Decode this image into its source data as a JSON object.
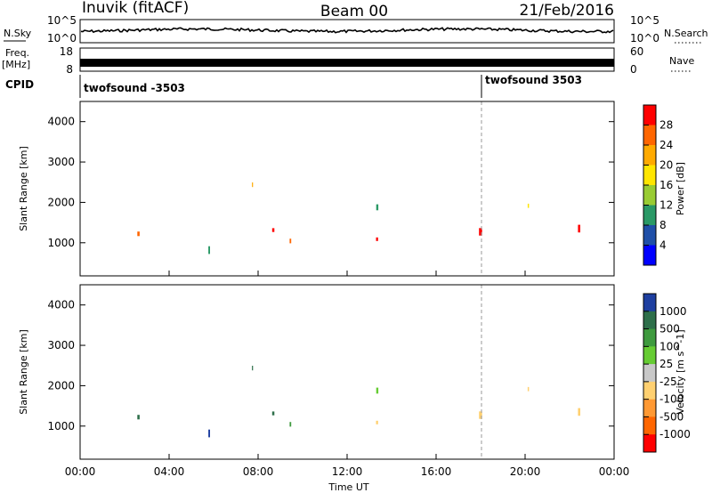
{
  "header": {
    "station": "Inuvik (fitACF)",
    "beam": "Beam 00",
    "date": "21/Feb/2016"
  },
  "panels": {
    "nsky_label": "N.Sky",
    "nsearch_label": "N.Search",
    "nsky_ticks": [
      "10^5",
      "10^0"
    ],
    "nsearch_ticks": [
      "10^5",
      "10^0"
    ],
    "freq_label": "Freq.",
    "freq_unit": "[MHz]",
    "freq_ticks": [
      "18",
      "8"
    ],
    "nave_label": "Nave",
    "nave_ticks": [
      "60",
      "0"
    ],
    "cpid_label": "CPID",
    "cpid_segments": [
      "twofsound -3503",
      "twofsound 3503"
    ]
  },
  "chart_data": [
    {
      "type": "heatmap",
      "ylabel": "Slant Range [km]",
      "ylim": [
        180,
        4500
      ],
      "yticks": [
        "1000",
        "2000",
        "3000",
        "4000"
      ],
      "colorbar_label": "Power [dB]",
      "colorbar_ticks": [
        "28",
        "24",
        "20",
        "16",
        "12",
        "8",
        "4"
      ],
      "colorbar_colors": [
        "#ff0000",
        "#ff6600",
        "#ffaa00",
        "#ffe600",
        "#99cc33",
        "#2a9966",
        "#1f4fa8",
        "#0000ff"
      ],
      "no_data_gaps": [
        [
          10.6,
          11.8
        ],
        [
          12.0,
          13.3
        ]
      ]
    },
    {
      "type": "heatmap",
      "ylabel": "Slant Range [km]",
      "ylim": [
        180,
        4500
      ],
      "yticks": [
        "1000",
        "2000",
        "3000",
        "4000"
      ],
      "colorbar_label": "Velocity [m s^-1]",
      "colorbar_ticks": [
        "1000",
        "500",
        "100",
        "25",
        "-25",
        "-100",
        "-500",
        "-1000"
      ],
      "colorbar_colors": [
        "#1e3fa0",
        "#2e6f4a",
        "#3e9a3e",
        "#66cc33",
        "#c8c8c8",
        "#ffd070",
        "#ff9933",
        "#ff6600",
        "#ff0000"
      ]
    }
  ],
  "xaxis": {
    "label": "Time UT",
    "ticks": [
      "00:00",
      "04:00",
      "08:00",
      "12:00",
      "16:00",
      "20:00",
      "00:00"
    ]
  }
}
